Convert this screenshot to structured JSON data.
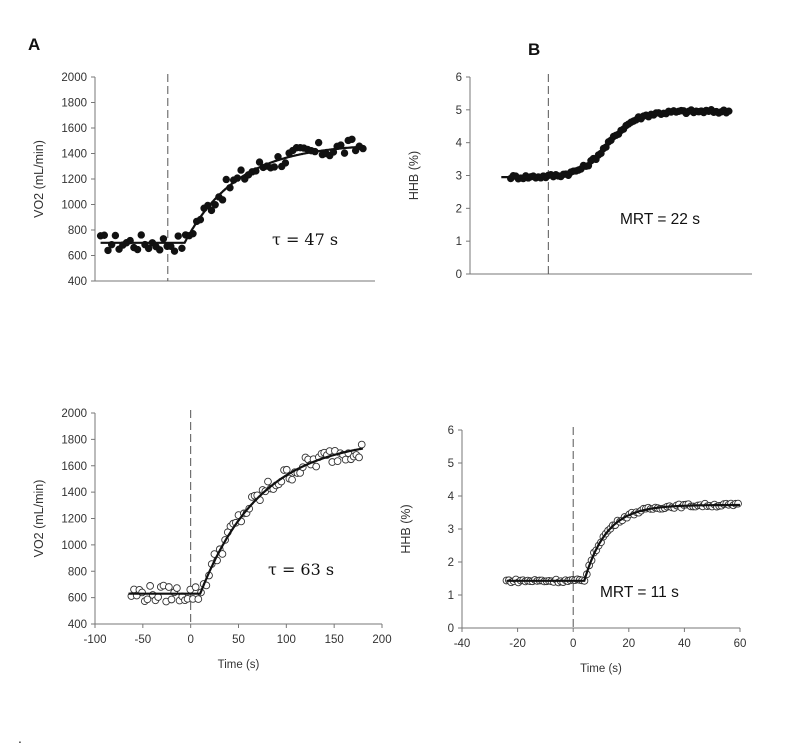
{
  "panel_labels": {
    "a": "A",
    "b": "B"
  },
  "footnote": ".",
  "chart_data": [
    {
      "id": "A1",
      "type": "scatter",
      "title": "",
      "ylabel": "VO2 (mL/min)",
      "xlabel": "",
      "ylim": [
        400,
        2000
      ],
      "yticks": [
        400,
        600,
        800,
        1000,
        1200,
        1400,
        1600,
        1800,
        2000
      ],
      "xlim": [
        -60,
        190
      ],
      "xticks": [],
      "marker": "filled",
      "vline": 5,
      "annotation": "τ = 47 s",
      "model": {
        "baseline": 700,
        "amplitude": 780,
        "td": 20,
        "tau": 47,
        "end": 180
      },
      "noise": 70,
      "points": {
        "start": -55,
        "end": 180,
        "step": 3.3
      },
      "fit_start": -55
    },
    {
      "id": "B1",
      "type": "scatter",
      "title": "",
      "ylabel": "HHB (%)",
      "xlabel": "",
      "ylim": [
        0,
        6
      ],
      "yticks": [
        0,
        1,
        2,
        3,
        4,
        5,
        6
      ],
      "xlim": [
        -25,
        65
      ],
      "xticks": [],
      "marker": "filled",
      "vline": 0,
      "annotation": "MRT = 22 s",
      "model": {
        "type": "sigmoid",
        "baseline": 2.95,
        "amplitude": 2.0,
        "center": 19,
        "width": 4.5,
        "end": 57
      },
      "noise": 0.06,
      "points": {
        "start": -12,
        "end": 58,
        "step": 0.8
      },
      "fit_start": -15
    },
    {
      "id": "A2",
      "type": "scatter",
      "title": "",
      "ylabel": "VO2 (mL/min)",
      "xlabel": "Time (s)",
      "ylim": [
        400,
        2000
      ],
      "yticks": [
        400,
        600,
        800,
        1000,
        1200,
        1400,
        1600,
        1800,
        2000
      ],
      "xlim": [
        -100,
        200
      ],
      "xticks": [
        -100,
        -50,
        0,
        50,
        100,
        150,
        200
      ],
      "marker": "open",
      "vline": 0,
      "annotation": "τ = 63 s",
      "model": {
        "baseline": 630,
        "amplitude": 1180,
        "td": 10,
        "tau": 63,
        "end": 180
      },
      "noise": 65,
      "points": {
        "start": -62,
        "end": 180,
        "step": 2.8
      },
      "fit_start": -65
    },
    {
      "id": "B2",
      "type": "scatter",
      "title": "",
      "ylabel": "HHB (%)",
      "xlabel": "Time (s)",
      "ylim": [
        0,
        6
      ],
      "yticks": [
        0,
        1,
        2,
        3,
        4,
        5,
        6
      ],
      "xlim": [
        -40,
        60
      ],
      "xticks": [
        -40,
        -20,
        0,
        20,
        40,
        60
      ],
      "marker": "open",
      "vline": 0,
      "annotation": "MRT = 11 s",
      "model": {
        "baseline": 1.43,
        "amplitude": 2.3,
        "td": 4,
        "tau": 8,
        "end": 60
      },
      "noise": 0.05,
      "points": {
        "start": -24,
        "end": 60,
        "step": 0.85
      },
      "fit_start": -24
    }
  ]
}
